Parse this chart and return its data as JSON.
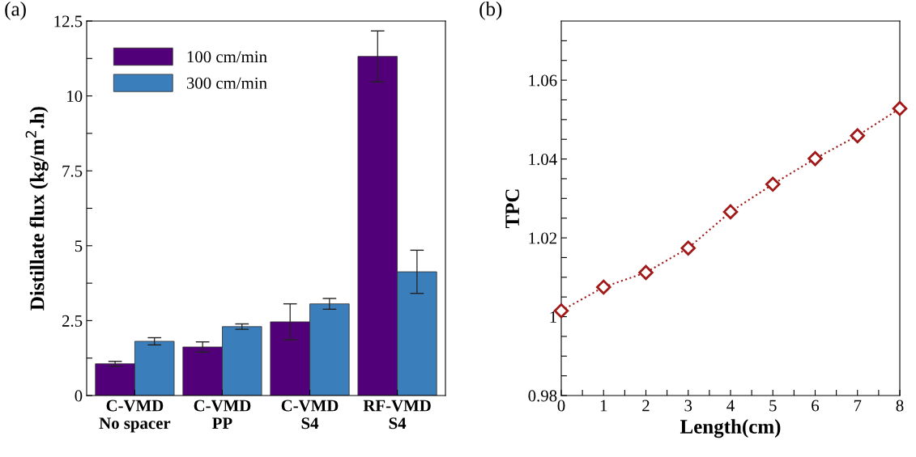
{
  "chart_data": [
    {
      "type": "bar",
      "annotations": [
        "(a)"
      ],
      "ylabel": "Distillate flux (kg/m$^{2}$.h)",
      "categories": [
        "C-VMD\nNo spacer",
        "C-VMD\nPP",
        "C-VMD\nS4",
        "RF-VMD\nS4"
      ],
      "series": [
        {
          "name": "100 cm/min",
          "color": "#52007a",
          "values": [
            1.06,
            1.62,
            2.46,
            11.32
          ],
          "errors": [
            0.08,
            0.17,
            0.6,
            0.85
          ]
        },
        {
          "name": "300 cm/min",
          "color": "#3a7ebb",
          "values": [
            1.81,
            2.3,
            3.06,
            4.13
          ],
          "errors": [
            0.12,
            0.09,
            0.18,
            0.72
          ]
        }
      ],
      "ylim": [
        0,
        12.5
      ],
      "yticks": [
        0,
        {
          "value": 1.25,
          "label": null
        },
        2.5,
        {
          "value": 3.75,
          "label": null
        },
        5,
        {
          "value": 6.25,
          "label": null
        },
        7.5,
        {
          "value": 8.75,
          "label": null
        },
        10,
        {
          "value": 11.25,
          "label": null
        },
        12.5
      ],
      "legend": "top left",
      "grid": false
    },
    {
      "type": "line",
      "annotations": [
        "(b)"
      ],
      "xlabel": "Length(cm)",
      "ylabel": "TPC",
      "series": [
        {
          "color": "#a01818",
          "x": [
            0,
            1,
            2,
            3,
            4,
            5,
            6,
            7,
            8
          ],
          "values": [
            1.0015,
            1.0075,
            1.0112,
            1.0174,
            1.0266,
            1.0336,
            1.0401,
            1.0459,
            1.0528
          ]
        }
      ],
      "marker": "diamond",
      "line_style": "dotted",
      "xlim": [
        0,
        8
      ],
      "xticks": [
        0,
        {
          "value": 0.5,
          "label": null
        },
        1,
        {
          "value": 1.5,
          "label": null
        },
        2,
        {
          "value": 2.5,
          "label": null
        },
        3,
        {
          "value": 3.5,
          "label": null
        },
        4,
        {
          "value": 4.5,
          "label": null
        },
        5,
        {
          "value": 5.5,
          "label": null
        },
        6,
        {
          "value": 6.5,
          "label": null
        },
        7,
        {
          "value": 7.5,
          "label": null
        },
        8
      ],
      "ylim": [
        0.98,
        1.075
      ],
      "yticks": [
        0.98,
        {
          "value": 0.985,
          "label": null
        },
        {
          "value": 0.99,
          "label": null
        },
        {
          "value": 0.995,
          "label": null
        },
        1,
        {
          "value": 1.005,
          "label": null
        },
        {
          "value": 1.01,
          "label": null
        },
        {
          "value": 1.015,
          "label": null
        },
        1.02,
        {
          "value": 1.025,
          "label": null
        },
        {
          "value": 1.03,
          "label": null
        },
        {
          "value": 1.035,
          "label": null
        },
        1.04,
        {
          "value": 1.045,
          "label": null
        },
        {
          "value": 1.05,
          "label": null
        },
        {
          "value": 1.055,
          "label": null
        },
        1.06,
        {
          "value": 1.065,
          "label": null
        },
        {
          "value": 1.07,
          "label": null
        }
      ],
      "grid": false
    }
  ]
}
